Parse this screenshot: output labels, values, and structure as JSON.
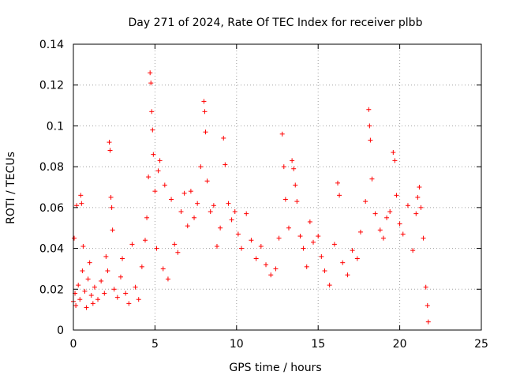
{
  "chart_data": {
    "type": "scatter",
    "title": "Day 271 of 2024, Rate Of TEC Index for receiver plbb",
    "xlabel": "GPS time / hours",
    "ylabel": "ROTI / TECUs",
    "xlim": [
      0,
      25
    ],
    "ylim": [
      0,
      0.14
    ],
    "xticks": [
      0,
      5,
      10,
      15,
      20,
      25
    ],
    "yticks": [
      0,
      0.02,
      0.04,
      0.06,
      0.08,
      0.1,
      0.12,
      0.14
    ],
    "xtick_labels": [
      "0",
      "5",
      "10",
      "15",
      "20",
      "25"
    ],
    "ytick_labels": [
      "0",
      "0.02",
      "0.04",
      "0.06",
      "0.08",
      "0.1",
      "0.12",
      "0.14"
    ],
    "grid": true,
    "marker": "plus",
    "color": "#ff0000",
    "series": [
      {
        "values": [
          [
            0.0,
            0.014
          ],
          [
            0.05,
            0.045
          ],
          [
            0.1,
            0.018
          ],
          [
            0.15,
            0.012
          ],
          [
            0.2,
            0.061
          ],
          [
            0.3,
            0.022
          ],
          [
            0.4,
            0.015
          ],
          [
            0.45,
            0.066
          ],
          [
            0.5,
            0.062
          ],
          [
            0.55,
            0.029
          ],
          [
            0.6,
            0.041
          ],
          [
            0.7,
            0.019
          ],
          [
            0.8,
            0.011
          ],
          [
            0.9,
            0.025
          ],
          [
            1.0,
            0.033
          ],
          [
            1.1,
            0.017
          ],
          [
            1.2,
            0.013
          ],
          [
            1.3,
            0.021
          ],
          [
            1.5,
            0.015
          ],
          [
            1.7,
            0.024
          ],
          [
            1.9,
            0.018
          ],
          [
            2.0,
            0.036
          ],
          [
            2.1,
            0.029
          ],
          [
            2.2,
            0.092
          ],
          [
            2.25,
            0.088
          ],
          [
            2.3,
            0.065
          ],
          [
            2.35,
            0.06
          ],
          [
            2.4,
            0.049
          ],
          [
            2.5,
            0.02
          ],
          [
            2.7,
            0.016
          ],
          [
            2.9,
            0.026
          ],
          [
            3.0,
            0.035
          ],
          [
            3.2,
            0.018
          ],
          [
            3.4,
            0.013
          ],
          [
            3.6,
            0.042
          ],
          [
            3.8,
            0.021
          ],
          [
            4.0,
            0.015
          ],
          [
            4.2,
            0.031
          ],
          [
            4.4,
            0.044
          ],
          [
            4.5,
            0.055
          ],
          [
            4.6,
            0.075
          ],
          [
            4.7,
            0.126
          ],
          [
            4.75,
            0.121
          ],
          [
            4.8,
            0.107
          ],
          [
            4.85,
            0.098
          ],
          [
            4.9,
            0.086
          ],
          [
            5.0,
            0.068
          ],
          [
            5.1,
            0.04
          ],
          [
            5.2,
            0.078
          ],
          [
            5.3,
            0.083
          ],
          [
            5.5,
            0.03
          ],
          [
            5.6,
            0.071
          ],
          [
            5.8,
            0.025
          ],
          [
            6.0,
            0.064
          ],
          [
            6.2,
            0.042
          ],
          [
            6.4,
            0.038
          ],
          [
            6.6,
            0.058
          ],
          [
            6.8,
            0.067
          ],
          [
            7.0,
            0.051
          ],
          [
            7.2,
            0.068
          ],
          [
            7.4,
            0.055
          ],
          [
            7.6,
            0.062
          ],
          [
            7.8,
            0.08
          ],
          [
            8.0,
            0.112
          ],
          [
            8.05,
            0.107
          ],
          [
            8.1,
            0.097
          ],
          [
            8.2,
            0.073
          ],
          [
            8.4,
            0.058
          ],
          [
            8.6,
            0.061
          ],
          [
            8.8,
            0.041
          ],
          [
            9.0,
            0.05
          ],
          [
            9.2,
            0.094
          ],
          [
            9.3,
            0.081
          ],
          [
            9.5,
            0.062
          ],
          [
            9.7,
            0.054
          ],
          [
            9.9,
            0.058
          ],
          [
            10.1,
            0.047
          ],
          [
            10.3,
            0.04
          ],
          [
            10.6,
            0.057
          ],
          [
            10.9,
            0.044
          ],
          [
            11.2,
            0.035
          ],
          [
            11.5,
            0.041
          ],
          [
            11.8,
            0.032
          ],
          [
            12.1,
            0.027
          ],
          [
            12.4,
            0.03
          ],
          [
            12.6,
            0.045
          ],
          [
            12.8,
            0.096
          ],
          [
            12.9,
            0.08
          ],
          [
            13.0,
            0.064
          ],
          [
            13.2,
            0.05
          ],
          [
            13.4,
            0.083
          ],
          [
            13.5,
            0.079
          ],
          [
            13.6,
            0.071
          ],
          [
            13.7,
            0.063
          ],
          [
            13.9,
            0.046
          ],
          [
            14.1,
            0.04
          ],
          [
            14.3,
            0.031
          ],
          [
            14.5,
            0.053
          ],
          [
            14.7,
            0.043
          ],
          [
            15.0,
            0.046
          ],
          [
            15.2,
            0.036
          ],
          [
            15.4,
            0.029
          ],
          [
            15.7,
            0.022
          ],
          [
            16.0,
            0.042
          ],
          [
            16.2,
            0.072
          ],
          [
            16.3,
            0.066
          ],
          [
            16.5,
            0.033
          ],
          [
            16.8,
            0.027
          ],
          [
            17.1,
            0.039
          ],
          [
            17.4,
            0.035
          ],
          [
            17.6,
            0.048
          ],
          [
            17.9,
            0.063
          ],
          [
            18.1,
            0.108
          ],
          [
            18.15,
            0.1
          ],
          [
            18.2,
            0.093
          ],
          [
            18.3,
            0.074
          ],
          [
            18.5,
            0.057
          ],
          [
            18.8,
            0.049
          ],
          [
            19.0,
            0.045
          ],
          [
            19.2,
            0.055
          ],
          [
            19.4,
            0.058
          ],
          [
            19.6,
            0.087
          ],
          [
            19.7,
            0.083
          ],
          [
            19.8,
            0.066
          ],
          [
            20.0,
            0.052
          ],
          [
            20.2,
            0.047
          ],
          [
            20.5,
            0.061
          ],
          [
            20.8,
            0.039
          ],
          [
            21.0,
            0.057
          ],
          [
            21.1,
            0.065
          ],
          [
            21.2,
            0.07
          ],
          [
            21.3,
            0.06
          ],
          [
            21.45,
            0.045
          ],
          [
            21.6,
            0.021
          ],
          [
            21.7,
            0.012
          ],
          [
            21.75,
            0.004
          ]
        ]
      }
    ]
  }
}
